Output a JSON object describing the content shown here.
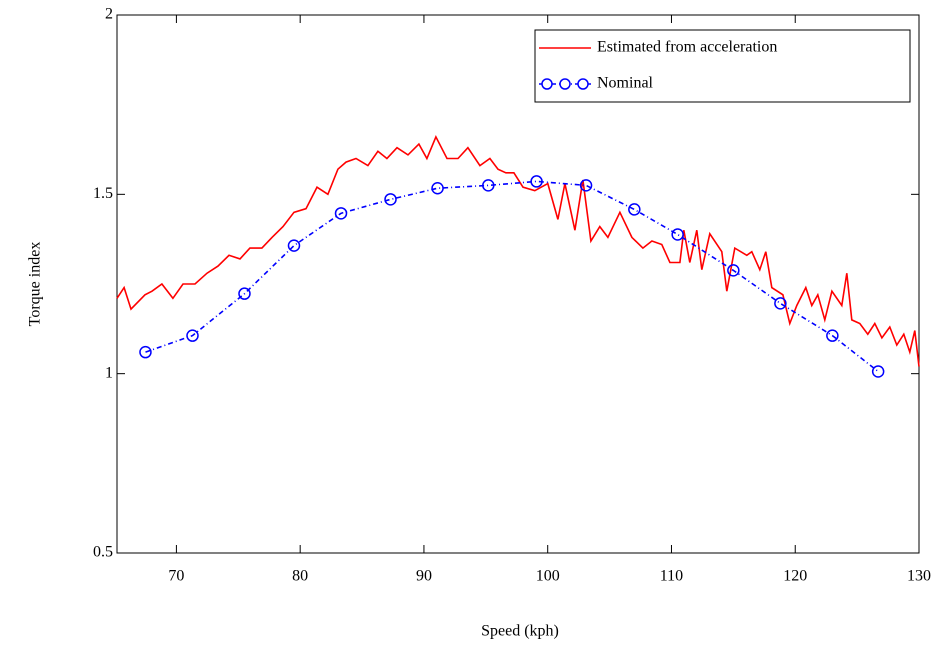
{
  "chart_data": {
    "type": "line",
    "xlabel": "Speed (kph)",
    "ylabel": "Torque index",
    "xlim": [
      65.2,
      130
    ],
    "xticks": [
      70,
      80,
      90,
      100,
      110,
      120,
      130
    ],
    "ylim": [
      0.5,
      2
    ],
    "yticks": [
      0.5,
      1,
      1.5,
      2
    ],
    "legend": "upper right",
    "series": [
      {
        "name": "Estimated from acceleration",
        "color": "#ff0000",
        "x": [
          65.2,
          65.77,
          66.33,
          67.46,
          68.03,
          68.83,
          69.72,
          70.53,
          71.5,
          72.47,
          73.36,
          74.25,
          75.14,
          75.94,
          76.91,
          77.72,
          78.61,
          79.5,
          80.47,
          81.36,
          82.24,
          83.05,
          83.7,
          84.51,
          85.47,
          86.28,
          87.01,
          87.82,
          88.71,
          89.59,
          90.24,
          90.97,
          91.86,
          92.75,
          93.55,
          94.52,
          95.33,
          95.98,
          96.62,
          97.27,
          98.0,
          98.96,
          100.01,
          100.82,
          101.39,
          102.2,
          102.84,
          103.49,
          104.21,
          104.86,
          105.83,
          106.8,
          107.69,
          108.42,
          109.22,
          109.87,
          110.68,
          111.0,
          111.48,
          112.05,
          112.45,
          113.1,
          114.07,
          114.47,
          115.12,
          116.09,
          116.49,
          117.14,
          117.62,
          118.11,
          119.0,
          119.56,
          120.13,
          120.85,
          121.34,
          121.82,
          122.39,
          122.96,
          123.76,
          124.17,
          124.57,
          125.22,
          125.86,
          126.43,
          127.0,
          127.64,
          128.21,
          128.77,
          129.26,
          129.66,
          130.0
        ],
        "values": [
          1.21,
          1.24,
          1.18,
          1.22,
          1.23,
          1.25,
          1.21,
          1.25,
          1.25,
          1.28,
          1.3,
          1.33,
          1.32,
          1.35,
          1.35,
          1.38,
          1.41,
          1.45,
          1.46,
          1.52,
          1.5,
          1.57,
          1.59,
          1.6,
          1.58,
          1.62,
          1.6,
          1.63,
          1.61,
          1.64,
          1.6,
          1.66,
          1.6,
          1.6,
          1.63,
          1.58,
          1.6,
          1.57,
          1.56,
          1.56,
          1.52,
          1.51,
          1.53,
          1.43,
          1.53,
          1.4,
          1.54,
          1.37,
          1.41,
          1.38,
          1.45,
          1.38,
          1.35,
          1.37,
          1.36,
          1.31,
          1.31,
          1.4,
          1.31,
          1.4,
          1.29,
          1.39,
          1.34,
          1.23,
          1.35,
          1.33,
          1.34,
          1.29,
          1.34,
          1.24,
          1.22,
          1.14,
          1.19,
          1.24,
          1.19,
          1.22,
          1.15,
          1.23,
          1.19,
          1.28,
          1.15,
          1.14,
          1.11,
          1.14,
          1.1,
          1.13,
          1.08,
          1.11,
          1.06,
          1.12,
          1.02
        ],
        "markers": false,
        "dash": "solid"
      },
      {
        "name": "Nominal",
        "color": "#0000ff",
        "x": [
          67.5,
          71.3,
          75.5,
          79.5,
          83.3,
          87.3,
          91.1,
          95.2,
          99.1,
          103.1,
          107.0,
          110.5,
          115.0,
          118.8,
          123.0,
          126.7
        ],
        "values": [
          1.06,
          1.106,
          1.223,
          1.357,
          1.447,
          1.486,
          1.517,
          1.525,
          1.536,
          1.525,
          1.458,
          1.388,
          1.288,
          1.196,
          1.106,
          1.006
        ],
        "markers": true,
        "dash": "dashdot"
      }
    ]
  }
}
